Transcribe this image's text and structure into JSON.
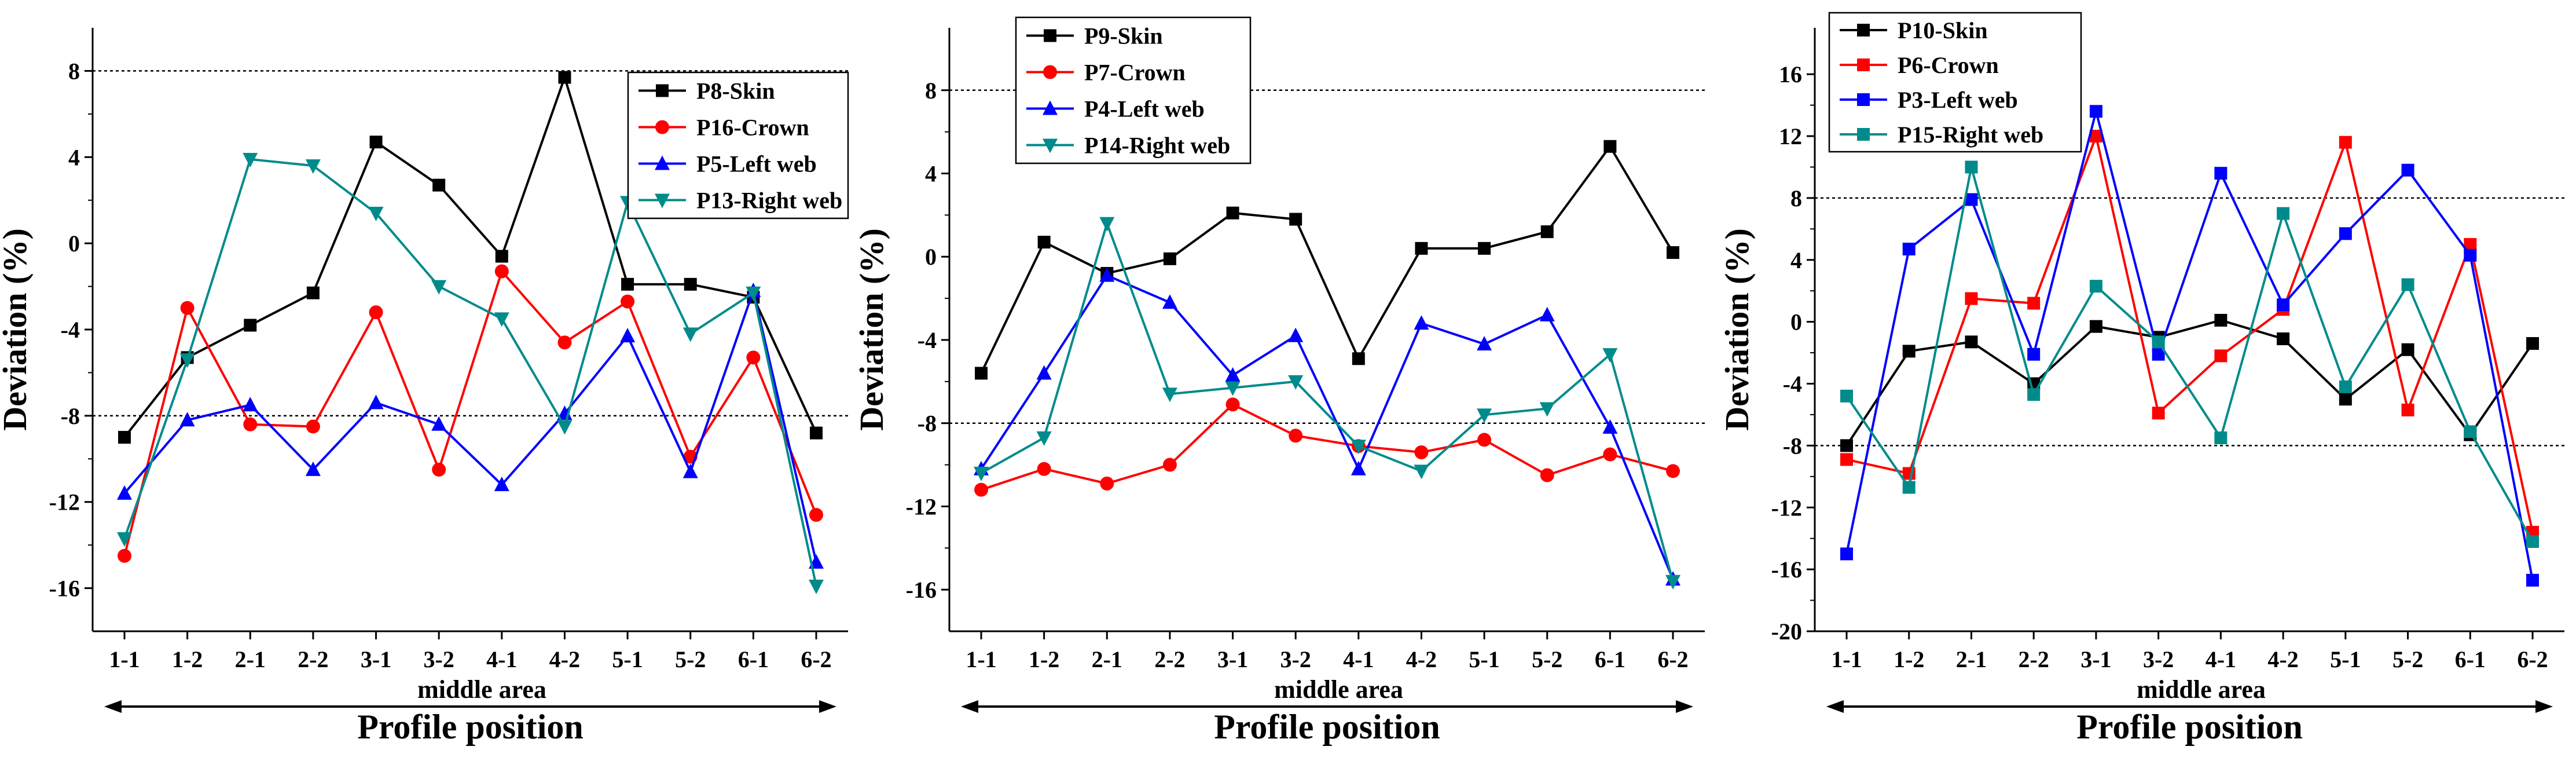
{
  "chart_data": [
    {
      "type": "line",
      "ylabel": "Deviation  (%)",
      "xlabel": "Profile position",
      "x_sublabel": "middle area",
      "categories": [
        "1-1",
        "1-2",
        "2-1",
        "2-2",
        "3-1",
        "3-2",
        "4-1",
        "4-2",
        "5-1",
        "5-2",
        "6-1",
        "6-2"
      ],
      "ylim": [
        -18,
        10
      ],
      "yticks": [
        8,
        4,
        0,
        -4,
        -8,
        -12,
        -16
      ],
      "ytick_labels": [
        "8",
        "4",
        "0",
        "-4",
        "-8",
        "-12",
        "-16"
      ],
      "reference_lines": [
        8,
        -8
      ],
      "legend_position": "top-right",
      "series": [
        {
          "name": "P8-Skin",
          "color": "#000000",
          "marker": "square",
          "values": [
            -9.0,
            -5.3,
            -3.8,
            -2.3,
            4.7,
            2.7,
            -0.6,
            7.7,
            -1.9,
            -1.9,
            -2.5,
            -8.8
          ]
        },
        {
          "name": "P16-Crown",
          "color": "#ff0000",
          "marker": "circle",
          "values": [
            -14.5,
            -3.0,
            -8.4,
            -8.5,
            -3.2,
            -10.5,
            -1.3,
            -4.6,
            -2.7,
            -9.9,
            -5.3,
            -12.6
          ]
        },
        {
          "name": "P5-Left web",
          "color": "#0000ff",
          "marker": "triangle-up",
          "values": [
            -11.6,
            -8.2,
            -7.5,
            -10.5,
            -7.4,
            -8.4,
            -11.2,
            -7.9,
            -4.3,
            -10.6,
            -2.2,
            -14.8
          ]
        },
        {
          "name": "P13-Right web",
          "color": "#008b8b",
          "marker": "triangle-down",
          "values": [
            -13.7,
            -5.4,
            3.9,
            3.6,
            1.4,
            -2.0,
            -3.5,
            -8.5,
            1.9,
            -4.2,
            -2.3,
            -15.9
          ]
        }
      ]
    },
    {
      "type": "line",
      "ylabel": "Deviation  (%)",
      "xlabel": "Profile position",
      "x_sublabel": "middle area",
      "categories": [
        "1-1",
        "1-2",
        "2-1",
        "2-2",
        "3-1",
        "3-2",
        "4-1",
        "4-2",
        "5-1",
        "5-2",
        "6-1",
        "6-2"
      ],
      "ylim": [
        -18,
        11
      ],
      "yticks": [
        8,
        4,
        0,
        -4,
        -8,
        -12,
        -16
      ],
      "ytick_labels": [
        "8",
        "4",
        "0",
        "-4",
        "-8",
        "-12",
        "-16"
      ],
      "reference_lines": [
        8,
        -8
      ],
      "legend_position": "top-left",
      "series": [
        {
          "name": "P9-Skin",
          "color": "#000000",
          "marker": "square",
          "values": [
            -5.6,
            0.7,
            -0.8,
            -0.1,
            2.1,
            1.8,
            -4.9,
            0.4,
            0.4,
            1.2,
            5.3,
            0.2
          ]
        },
        {
          "name": "P7-Crown",
          "color": "#ff0000",
          "marker": "circle",
          "values": [
            -11.2,
            -10.2,
            -10.9,
            -10.0,
            -7.1,
            -8.6,
            -9.1,
            -9.4,
            -8.8,
            -10.5,
            -9.5,
            -10.3
          ]
        },
        {
          "name": "P4-Left web",
          "color": "#0000ff",
          "marker": "triangle-up",
          "values": [
            -10.2,
            -5.6,
            -0.9,
            -2.2,
            -5.7,
            -3.8,
            -10.2,
            -3.2,
            -4.2,
            -2.8,
            -8.2,
            -15.5
          ]
        },
        {
          "name": "P14-Right web",
          "color": "#008b8b",
          "marker": "triangle-down",
          "values": [
            -10.4,
            -8.7,
            1.6,
            -6.6,
            -6.3,
            -6.0,
            -9.1,
            -10.3,
            -7.6,
            -7.3,
            -4.7,
            -15.6
          ]
        }
      ]
    },
    {
      "type": "line",
      "ylabel": "Deviation  (%)",
      "xlabel": "Profile position",
      "x_sublabel": "middle area",
      "categories": [
        "1-1",
        "1-2",
        "2-1",
        "2-2",
        "3-1",
        "3-2",
        "4-1",
        "4-2",
        "5-1",
        "5-2",
        "6-1",
        "6-2"
      ],
      "ylim": [
        -20,
        19
      ],
      "yticks": [
        16,
        12,
        8,
        4,
        0,
        -4,
        -8,
        -12,
        -16,
        -20
      ],
      "ytick_labels": [
        "16",
        "12",
        "8",
        "4",
        "0",
        "-4",
        "-8",
        "-12",
        "-16",
        "-20"
      ],
      "reference_lines": [
        8,
        -8
      ],
      "legend_position": "top-left",
      "series": [
        {
          "name": "P10-Skin",
          "color": "#000000",
          "marker": "square",
          "values": [
            -8.0,
            -1.9,
            -1.3,
            -4.0,
            -0.3,
            -1.0,
            0.1,
            -1.1,
            -5.0,
            -1.8,
            -7.3,
            -1.4
          ]
        },
        {
          "name": "P6-Crown",
          "color": "#ff0000",
          "marker": "square",
          "values": [
            -8.9,
            -9.8,
            1.5,
            1.2,
            12.0,
            -5.9,
            -2.2,
            0.8,
            11.6,
            -5.7,
            5.0,
            -13.6
          ]
        },
        {
          "name": "P3-Left web",
          "color": "#0000ff",
          "marker": "square",
          "values": [
            -15.0,
            4.7,
            7.9,
            -2.1,
            13.6,
            -2.1,
            9.6,
            1.1,
            5.7,
            9.8,
            4.3,
            -16.7
          ]
        },
        {
          "name": "P15-Right web",
          "color": "#008b8b",
          "marker": "square",
          "values": [
            -4.8,
            -10.7,
            10.0,
            -4.7,
            2.3,
            -1.3,
            -7.5,
            7.0,
            -4.2,
            2.4,
            -7.1,
            -14.2
          ]
        }
      ]
    }
  ]
}
